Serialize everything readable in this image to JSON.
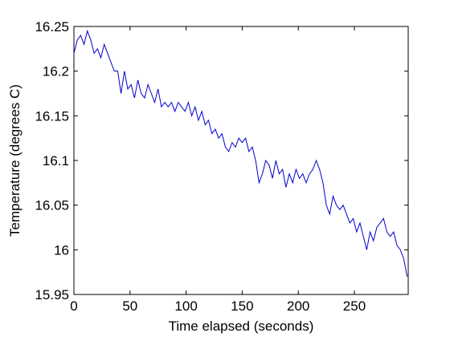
{
  "chart_data": {
    "type": "line",
    "xlabel": "Time elapsed (seconds)",
    "ylabel": "Temperature (degrees C)",
    "x": [
      0,
      3,
      6,
      9,
      12,
      15,
      18,
      21,
      24,
      27,
      30,
      33,
      36,
      39,
      42,
      45,
      48,
      51,
      54,
      57,
      60,
      63,
      66,
      69,
      72,
      75,
      78,
      81,
      84,
      87,
      90,
      93,
      96,
      99,
      102,
      105,
      108,
      111,
      114,
      117,
      120,
      123,
      126,
      129,
      132,
      135,
      138,
      141,
      144,
      147,
      150,
      153,
      156,
      159,
      162,
      165,
      168,
      171,
      174,
      177,
      180,
      183,
      186,
      189,
      192,
      195,
      198,
      201,
      204,
      207,
      210,
      213,
      216,
      219,
      222,
      225,
      228,
      231,
      234,
      237,
      240,
      243,
      246,
      249,
      252,
      255,
      258,
      261,
      264,
      267,
      270,
      273,
      276,
      279,
      282,
      285,
      288,
      291,
      294,
      297
    ],
    "series": [
      {
        "color": "#0000cc",
        "values": [
          16.22,
          16.235,
          16.24,
          16.23,
          16.245,
          16.235,
          16.22,
          16.225,
          16.215,
          16.23,
          16.22,
          16.21,
          16.2,
          16.2,
          16.175,
          16.2,
          16.18,
          16.185,
          16.17,
          16.19,
          16.175,
          16.17,
          16.185,
          16.175,
          16.165,
          16.18,
          16.16,
          16.165,
          16.16,
          16.165,
          16.155,
          16.165,
          16.16,
          16.155,
          16.165,
          16.15,
          16.16,
          16.145,
          16.155,
          16.14,
          16.145,
          16.13,
          16.135,
          16.125,
          16.13,
          16.115,
          16.11,
          16.12,
          16.115,
          16.125,
          16.12,
          16.125,
          16.11,
          16.115,
          16.1,
          16.075,
          16.085,
          16.1,
          16.095,
          16.08,
          16.1,
          16.085,
          16.09,
          16.07,
          16.085,
          16.075,
          16.09,
          16.08,
          16.085,
          16.075,
          16.085,
          16.09,
          16.1,
          16.09,
          16.075,
          16.05,
          16.04,
          16.06,
          16.05,
          16.045,
          16.05,
          16.04,
          16.03,
          16.035,
          16.02,
          16.03,
          16.015,
          16.0,
          16.02,
          16.01,
          16.025,
          16.03,
          16.035,
          16.02,
          16.015,
          16.02,
          16.005,
          16.0,
          15.99,
          15.97
        ]
      }
    ],
    "xlim": [
      0,
      298
    ],
    "ylim": [
      15.95,
      16.25
    ],
    "xticks": [
      0,
      50,
      100,
      150,
      200,
      250
    ],
    "yticks": [
      15.95,
      16,
      16.05,
      16.1,
      16.15,
      16.2,
      16.25
    ]
  }
}
